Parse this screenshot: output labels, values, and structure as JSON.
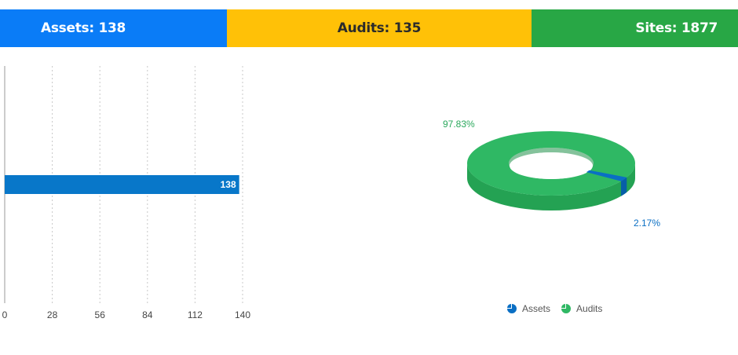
{
  "stats": {
    "assets_label": "Assets: 138",
    "audits_label": "Audits: 135",
    "sites_label": "Sites: 1877"
  },
  "colors": {
    "assets": "#0a7cf7",
    "audits": "#ffc107",
    "sites": "#28a745",
    "bar": "#0877c9",
    "donut_green": "#2fb864",
    "donut_blue": "#0a6fc4"
  },
  "chart_data": [
    {
      "type": "bar",
      "orientation": "horizontal",
      "categories": [
        ""
      ],
      "values": [
        138
      ],
      "data_labels": [
        "138"
      ],
      "xlim": [
        0,
        140
      ],
      "xticks": [
        0,
        28,
        56,
        84,
        112,
        140
      ],
      "xtick_labels": [
        "0",
        "28",
        "56",
        "84",
        "112",
        "140"
      ],
      "grid": "vertical-dashed"
    },
    {
      "type": "pie",
      "style": "3d-donut",
      "slices": [
        {
          "name": "Assets",
          "value": 2.17,
          "label": "2.17%"
        },
        {
          "name": "Audits",
          "value": 97.83,
          "label": "97.83%"
        }
      ],
      "legend": {
        "position": "bottom",
        "items": [
          "Assets",
          "Audits"
        ]
      }
    }
  ]
}
